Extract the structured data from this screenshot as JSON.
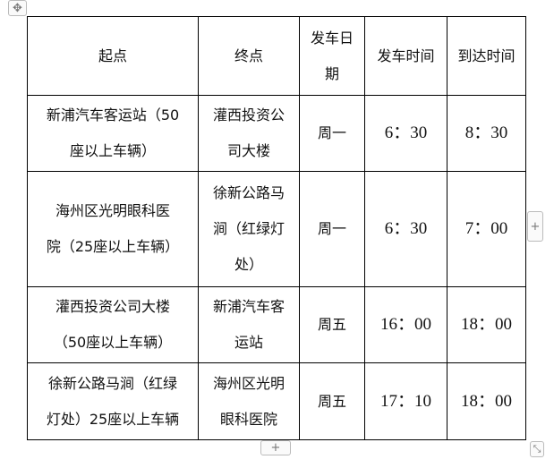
{
  "table": {
    "headers": [
      {
        "lines": [
          "起点"
        ]
      },
      {
        "lines": [
          "终点"
        ]
      },
      {
        "lines": [
          "发车日",
          "期"
        ]
      },
      {
        "lines": [
          "发车时间"
        ]
      },
      {
        "lines": [
          "到达时间"
        ]
      }
    ],
    "rows": [
      {
        "start": [
          "新浦汽车客运站（50",
          "座以上车辆）"
        ],
        "end": [
          "灌西投资公",
          "司大楼"
        ],
        "day": "周一",
        "depart": "6：30",
        "arrive": "8：30"
      },
      {
        "start": [
          "海州区光明眼科医",
          "院（25座以上车辆）"
        ],
        "end": [
          "徐新公路马",
          "涧（红绿灯",
          "处）"
        ],
        "day": "周一",
        "depart": "6：30",
        "arrive": "7：00"
      },
      {
        "start": [
          "灌西投资公司大楼",
          "（50座以上车辆）"
        ],
        "end": [
          "新浦汽车客",
          "运站"
        ],
        "day": "周五",
        "depart": "16：00",
        "arrive": "18：00"
      },
      {
        "start": [
          "徐新公路马涧（红绿",
          "灯处）25座以上车辆"
        ],
        "end": [
          "海州区光明",
          "眼科医院"
        ],
        "day": "周五",
        "depart": "17：10",
        "arrive": "18：00"
      }
    ]
  },
  "handles": {
    "move_icon": "move-icon",
    "add_row": "+",
    "add_column": "+",
    "resize_icon": "resize-icon"
  }
}
